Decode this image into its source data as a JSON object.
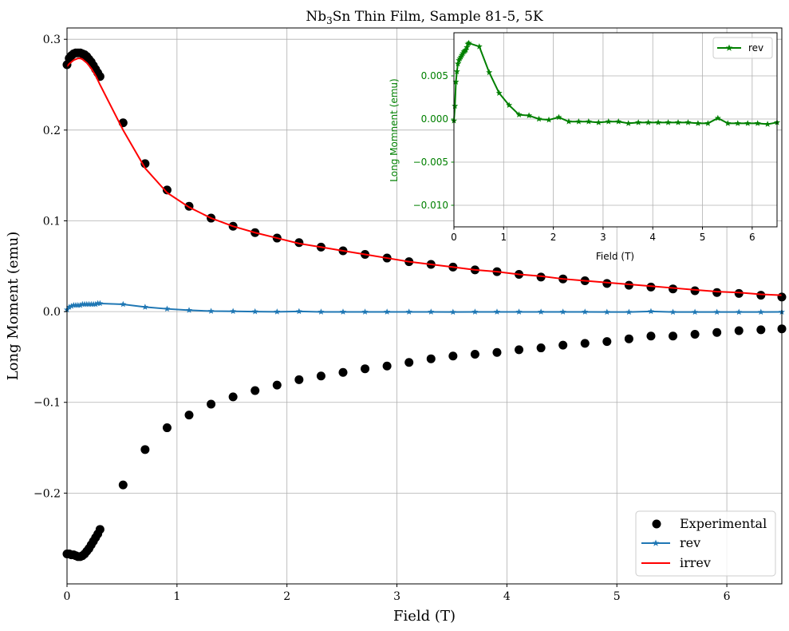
{
  "chart_data": [
    {
      "type": "scatter",
      "title_parts": {
        "pre": "Nb",
        "sub": "3",
        "post": "Sn Thin Film, Sample 81-5, 5K"
      },
      "xlabel": "Field (T)",
      "ylabel": "Long Moment (emu)",
      "xlim": [
        0,
        6.5
      ],
      "ylim": [
        -0.3,
        0.3125
      ],
      "xticks": [
        0,
        1,
        2,
        3,
        4,
        5,
        6
      ],
      "yticks": [
        -0.2,
        -0.1,
        0.0,
        0.1,
        0.2,
        0.3
      ],
      "ytick_labels": [
        "−0.2",
        "−0.1",
        "0.0",
        "0.1",
        "0.2",
        "0.3"
      ],
      "grid": true,
      "legend_position": "lower right",
      "legend": [
        "Experimental",
        "rev",
        "irrev"
      ],
      "series": [
        {
          "name": "Experimental",
          "kind": "scatter",
          "color": "#000000",
          "upper": {
            "x": [
              0.0,
              0.02,
              0.04,
              0.06,
              0.08,
              0.1,
              0.12,
              0.14,
              0.16,
              0.18,
              0.2,
              0.22,
              0.24,
              0.26,
              0.28,
              0.3,
              0.51,
              0.71,
              0.91,
              1.11,
              1.31,
              1.51,
              1.71,
              1.91,
              2.11,
              2.31,
              2.51,
              2.71,
              2.91,
              3.11,
              3.31,
              3.51,
              3.71,
              3.91,
              4.11,
              4.31,
              4.51,
              4.71,
              4.91,
              5.11,
              5.31,
              5.51,
              5.71,
              5.91,
              6.11,
              6.31,
              6.5
            ],
            "y": [
              0.272,
              0.279,
              0.282,
              0.284,
              0.285,
              0.285,
              0.285,
              0.284,
              0.283,
              0.281,
              0.278,
              0.275,
              0.271,
              0.267,
              0.263,
              0.259,
              0.208,
              0.163,
              0.134,
              0.116,
              0.103,
              0.094,
              0.087,
              0.081,
              0.076,
              0.071,
              0.067,
              0.063,
              0.059,
              0.055,
              0.052,
              0.049,
              0.046,
              0.044,
              0.041,
              0.038,
              0.036,
              0.034,
              0.031,
              0.029,
              0.027,
              0.025,
              0.023,
              0.021,
              0.02,
              0.018,
              0.016
            ]
          },
          "lower": {
            "x": [
              0.0,
              0.02,
              0.04,
              0.06,
              0.08,
              0.1,
              0.12,
              0.14,
              0.16,
              0.18,
              0.2,
              0.22,
              0.24,
              0.26,
              0.28,
              0.3,
              0.51,
              0.71,
              0.91,
              1.11,
              1.31,
              1.51,
              1.71,
              1.91,
              2.11,
              2.31,
              2.51,
              2.71,
              2.91,
              3.11,
              3.31,
              3.51,
              3.71,
              3.91,
              4.11,
              4.31,
              4.51,
              4.71,
              4.91,
              5.11,
              5.31,
              5.51,
              5.71,
              5.91,
              6.11,
              6.31,
              6.5
            ],
            "y": [
              -0.267,
              -0.267,
              -0.268,
              -0.268,
              -0.269,
              -0.27,
              -0.27,
              -0.269,
              -0.267,
              -0.264,
              -0.261,
              -0.257,
              -0.253,
              -0.249,
              -0.245,
              -0.24,
              -0.191,
              -0.152,
              -0.128,
              -0.114,
              -0.102,
              -0.094,
              -0.087,
              -0.081,
              -0.075,
              -0.071,
              -0.067,
              -0.063,
              -0.06,
              -0.056,
              -0.052,
              -0.049,
              -0.047,
              -0.045,
              -0.042,
              -0.04,
              -0.037,
              -0.035,
              -0.033,
              -0.03,
              -0.027,
              -0.027,
              -0.025,
              -0.023,
              -0.021,
              -0.02,
              -0.019
            ]
          }
        },
        {
          "name": "rev",
          "kind": "line",
          "color": "#1f77b4",
          "x": [
            0.0,
            0.02,
            0.04,
            0.06,
            0.08,
            0.1,
            0.12,
            0.14,
            0.16,
            0.18,
            0.2,
            0.22,
            0.24,
            0.26,
            0.28,
            0.3,
            0.51,
            0.71,
            0.91,
            1.11,
            1.31,
            1.51,
            1.71,
            1.91,
            2.11,
            2.31,
            2.51,
            2.71,
            2.91,
            3.11,
            3.31,
            3.51,
            3.71,
            3.91,
            4.11,
            4.31,
            4.51,
            4.71,
            4.91,
            5.11,
            5.31,
            5.51,
            5.71,
            5.91,
            6.11,
            6.31,
            6.5
          ],
          "y": [
            0.002,
            0.005,
            0.006,
            0.007,
            0.007,
            0.007,
            0.007,
            0.008,
            0.008,
            0.008,
            0.008,
            0.008,
            0.008,
            0.008,
            0.009,
            0.009,
            0.008,
            0.005,
            0.003,
            0.0015,
            0.0005,
            0.0003,
            0.0,
            -0.0002,
            0.0002,
            -0.0003,
            -0.0003,
            -0.0003,
            -0.0003,
            -0.0003,
            -0.0003,
            -0.0005,
            -0.0003,
            -0.0003,
            -0.0003,
            -0.0003,
            -0.0003,
            -0.0003,
            -0.0005,
            -0.0005,
            0.0002,
            -0.0005,
            -0.0005,
            -0.0005,
            -0.0005,
            -0.0005,
            -0.0004
          ]
        },
        {
          "name": "irrev",
          "kind": "line",
          "color": "#ff0000",
          "x": [
            0.0,
            0.02,
            0.04,
            0.06,
            0.08,
            0.1,
            0.12,
            0.14,
            0.16,
            0.18,
            0.2,
            0.22,
            0.24,
            0.26,
            0.28,
            0.3,
            0.51,
            0.71,
            0.91,
            1.11,
            1.31,
            1.51,
            1.71,
            1.91,
            2.11,
            2.31,
            2.51,
            2.71,
            2.91,
            3.11,
            3.31,
            3.51,
            3.71,
            3.91,
            4.11,
            4.31,
            4.51,
            4.71,
            4.91,
            5.11,
            5.31,
            5.51,
            5.71,
            5.91,
            6.11,
            6.31,
            6.5
          ],
          "y": [
            0.27,
            0.273,
            0.275,
            0.277,
            0.278,
            0.279,
            0.279,
            0.278,
            0.276,
            0.274,
            0.271,
            0.268,
            0.264,
            0.26,
            0.255,
            0.25,
            0.2,
            0.158,
            0.131,
            0.115,
            0.103,
            0.094,
            0.087,
            0.081,
            0.075,
            0.071,
            0.067,
            0.063,
            0.059,
            0.055,
            0.052,
            0.049,
            0.046,
            0.044,
            0.041,
            0.039,
            0.036,
            0.034,
            0.032,
            0.03,
            0.028,
            0.026,
            0.024,
            0.022,
            0.021,
            0.019,
            0.018
          ]
        }
      ]
    },
    {
      "type": "line",
      "role": "inset",
      "title": "",
      "xlabel": "Field (T)",
      "ylabel": "Long Momnent (emu)",
      "xlim": [
        0,
        6.5
      ],
      "ylim": [
        -0.0125,
        0.01
      ],
      "xticks": [
        0,
        1,
        2,
        3,
        4,
        5,
        6
      ],
      "yticks": [
        -0.01,
        -0.005,
        0.0,
        0.005
      ],
      "ytick_labels": [
        "−0.010",
        "−0.005",
        "0.000",
        "0.005"
      ],
      "grid": true,
      "legend_position": "upper right",
      "legend": [
        "rev"
      ],
      "series": [
        {
          "name": "rev",
          "color": "#008000",
          "x": [
            0.0,
            0.02,
            0.04,
            0.06,
            0.08,
            0.1,
            0.12,
            0.14,
            0.16,
            0.18,
            0.2,
            0.22,
            0.24,
            0.26,
            0.28,
            0.3,
            0.51,
            0.71,
            0.91,
            1.11,
            1.31,
            1.51,
            1.71,
            1.91,
            2.11,
            2.31,
            2.51,
            2.71,
            2.91,
            3.11,
            3.31,
            3.51,
            3.71,
            3.91,
            4.11,
            4.31,
            4.51,
            4.71,
            4.91,
            5.11,
            5.31,
            5.51,
            5.71,
            5.91,
            6.11,
            6.31,
            6.5
          ],
          "y": [
            -0.0002,
            0.0015,
            0.0043,
            0.0055,
            0.0064,
            0.0068,
            0.007,
            0.0072,
            0.0074,
            0.0076,
            0.0078,
            0.0079,
            0.008,
            0.0083,
            0.0087,
            0.0088,
            0.0084,
            0.0054,
            0.003,
            0.0016,
            0.0005,
            0.0004,
            0.0,
            -0.0001,
            0.0002,
            -0.0003,
            -0.0003,
            -0.0003,
            -0.0004,
            -0.0003,
            -0.0003,
            -0.0005,
            -0.0004,
            -0.0004,
            -0.0004,
            -0.0004,
            -0.0004,
            -0.0004,
            -0.0005,
            -0.0005,
            0.0001,
            -0.0005,
            -0.0005,
            -0.0005,
            -0.0005,
            -0.0006,
            -0.0004
          ]
        }
      ]
    }
  ]
}
